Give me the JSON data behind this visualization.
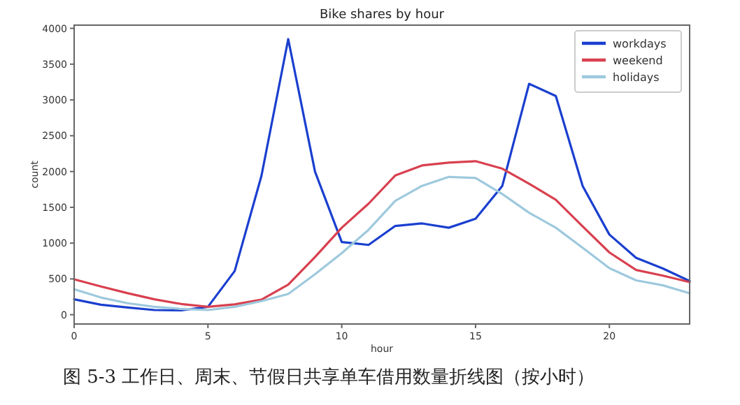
{
  "chart_data": {
    "type": "line",
    "title": "Bike shares by hour",
    "xlabel": "hour",
    "ylabel": "count",
    "annotations": [
      "图 5-3 工作日、周末、节假日共享单车借用数量折线图（按小时）"
    ],
    "x": [
      0,
      1,
      2,
      3,
      4,
      5,
      6,
      7,
      8,
      9,
      10,
      11,
      12,
      13,
      14,
      15,
      16,
      17,
      18,
      19,
      20,
      21,
      22,
      23
    ],
    "xlim": [
      0,
      23
    ],
    "xticks": [
      0,
      5,
      10,
      15,
      20
    ],
    "ylim": [
      -130,
      4045
    ],
    "yticks": [
      0,
      500,
      1000,
      1500,
      2000,
      2500,
      3000,
      3500,
      4000
    ],
    "grid": false,
    "legend": "top right",
    "line_style": "solid",
    "marker": "none",
    "series": [
      {
        "name": "workdays",
        "color": "#1a3fcf",
        "values": [
          215,
          140,
          100,
          65,
          60,
          110,
          610,
          1940,
          3850,
          2000,
          1015,
          975,
          1240,
          1275,
          1215,
          1340,
          1800,
          3225,
          3055,
          1800,
          1120,
          795,
          645,
          470
        ]
      },
      {
        "name": "weekend",
        "color": "#d8404f",
        "values": [
          495,
          395,
          300,
          215,
          150,
          110,
          145,
          210,
          420,
          805,
          1215,
          1550,
          1945,
          2085,
          2125,
          2145,
          2040,
          1830,
          1605,
          1235,
          870,
          625,
          545,
          455
        ]
      },
      {
        "name": "holidays",
        "color": "#9ec9dd",
        "values": [
          355,
          240,
          160,
          110,
          80,
          65,
          110,
          190,
          290,
          565,
          860,
          1185,
          1590,
          1800,
          1925,
          1910,
          1685,
          1425,
          1215,
          935,
          650,
          480,
          410,
          300
        ]
      }
    ]
  }
}
